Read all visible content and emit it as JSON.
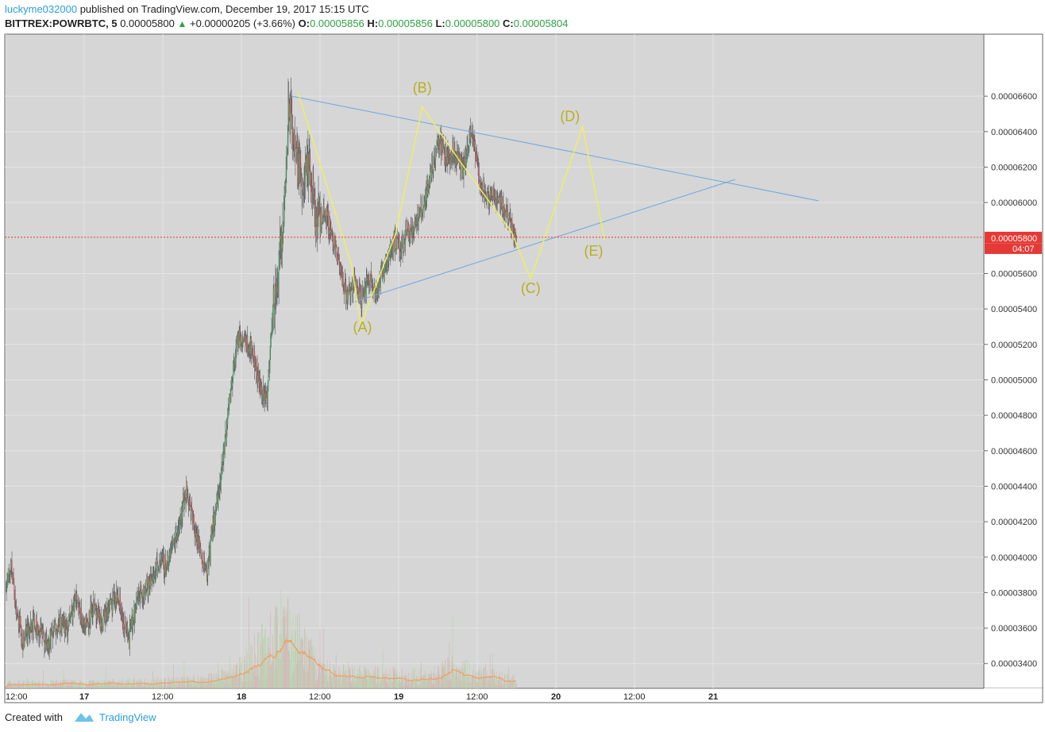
{
  "header": {
    "author": "luckyme032000",
    "published_text": "published on TradingView.com, December 19, 2017 15:15 UTC",
    "symbol": "BITTREX:POWRBTC, 5",
    "last": "0.00005800",
    "change_arrow": "▲",
    "change": "+0.00000205 (+3.66%)",
    "o_label": "O:",
    "o_value": "0.00005856",
    "h_label": "H:",
    "h_value": "0.00005856",
    "l_label": "L:",
    "l_value": "0.00005800",
    "c_label": "C:",
    "c_value": "0.00005804"
  },
  "footer": {
    "created_with": "Created with",
    "brand": "TradingView",
    "logo_icon": "tradingview-logo-icon"
  },
  "colors": {
    "up": "#3cb371",
    "down": "#e0525d",
    "volume": "#a8c8a0",
    "vol_ma": "#f0a060",
    "trendline": "#6aa8e0",
    "wave": "#f2f05a",
    "wave_label": "#b8b020",
    "price_line": "#e53935",
    "grid": "#e4e4e4",
    "bg": "#d6d6d6"
  },
  "chart_data": {
    "type": "candlestick",
    "ylim": [
      3.26e-05,
      6.95e-05
    ],
    "yticks": [
      "0.00006600",
      "0.00006400",
      "0.00006200",
      "0.00006000",
      "0.00005600",
      "0.00005400",
      "0.00005200",
      "0.00005000",
      "0.00004800",
      "0.00004600",
      "0.00004400",
      "0.00004200",
      "0.00004000",
      "0.00003800",
      "0.00003600",
      "0.00003400"
    ],
    "xticks": [
      "12:00",
      "17",
      "12:00",
      "18",
      "12:00",
      "19",
      "12:00",
      "20",
      "12:00",
      "21"
    ],
    "last_price_label": "0.00005804",
    "countdown_label": "04:07",
    "bid_label": "0.00005800",
    "price_path": [
      {
        "t": 0,
        "p": 3.82e-05
      },
      {
        "t": 0.03,
        "p": 3.98e-05
      },
      {
        "t": 0.07,
        "p": 3.68e-05
      },
      {
        "t": 0.11,
        "p": 3.52e-05
      },
      {
        "t": 0.16,
        "p": 3.64e-05
      },
      {
        "t": 0.22,
        "p": 3.58e-05
      },
      {
        "t": 0.27,
        "p": 3.5e-05
      },
      {
        "t": 0.33,
        "p": 3.64e-05
      },
      {
        "t": 0.39,
        "p": 3.6e-05
      },
      {
        "t": 0.45,
        "p": 3.78e-05
      },
      {
        "t": 0.5,
        "p": 3.6e-05
      },
      {
        "t": 0.55,
        "p": 3.72e-05
      },
      {
        "t": 0.6,
        "p": 3.62e-05
      },
      {
        "t": 0.66,
        "p": 3.72e-05
      },
      {
        "t": 0.71,
        "p": 3.78e-05
      },
      {
        "t": 0.75,
        "p": 3.62e-05
      },
      {
        "t": 0.78,
        "p": 3.54e-05
      },
      {
        "t": 0.85,
        "p": 3.8e-05
      },
      {
        "t": 0.92,
        "p": 3.85e-05
      },
      {
        "t": 0.97,
        "p": 3.98e-05
      },
      {
        "t": 1.02,
        "p": 3.95e-05
      },
      {
        "t": 1.09,
        "p": 4.15e-05
      },
      {
        "t": 1.15,
        "p": 4.38e-05
      },
      {
        "t": 1.19,
        "p": 4.2e-05
      },
      {
        "t": 1.24,
        "p": 4.02e-05
      },
      {
        "t": 1.28,
        "p": 3.92e-05
      },
      {
        "t": 1.32,
        "p": 4.2e-05
      },
      {
        "t": 1.37,
        "p": 4.45e-05
      },
      {
        "t": 1.41,
        "p": 4.8e-05
      },
      {
        "t": 1.47,
        "p": 5.22e-05
      },
      {
        "t": 1.52,
        "p": 5.25e-05
      },
      {
        "t": 1.57,
        "p": 5.15e-05
      },
      {
        "t": 1.62,
        "p": 4.95e-05
      },
      {
        "t": 1.66,
        "p": 4.9e-05
      },
      {
        "t": 1.7,
        "p": 5.4e-05
      },
      {
        "t": 1.76,
        "p": 5.8e-05
      },
      {
        "t": 1.8,
        "p": 6.55e-05
      },
      {
        "t": 1.84,
        "p": 6.3e-05
      },
      {
        "t": 1.88,
        "p": 6.12e-05
      },
      {
        "t": 1.93,
        "p": 6.18e-05
      },
      {
        "t": 1.97,
        "p": 5.9e-05
      },
      {
        "t": 2.03,
        "p": 5.95e-05
      },
      {
        "t": 2.08,
        "p": 5.8e-05
      },
      {
        "t": 2.13,
        "p": 5.6e-05
      },
      {
        "t": 2.17,
        "p": 5.48e-05
      },
      {
        "t": 2.22,
        "p": 5.56e-05
      },
      {
        "t": 2.26,
        "p": 5.45e-05
      },
      {
        "t": 2.31,
        "p": 5.58e-05
      },
      {
        "t": 2.36,
        "p": 5.5e-05
      },
      {
        "t": 2.41,
        "p": 5.65e-05
      },
      {
        "t": 2.47,
        "p": 5.78e-05
      },
      {
        "t": 2.51,
        "p": 5.72e-05
      },
      {
        "t": 2.55,
        "p": 5.85e-05
      },
      {
        "t": 2.6,
        "p": 5.86e-05
      },
      {
        "t": 2.65,
        "p": 5.97e-05
      },
      {
        "t": 2.7,
        "p": 6.15e-05
      },
      {
        "t": 2.75,
        "p": 6.36e-05
      },
      {
        "t": 2.8,
        "p": 6.25e-05
      },
      {
        "t": 2.85,
        "p": 6.28e-05
      },
      {
        "t": 2.91,
        "p": 6.18e-05
      },
      {
        "t": 2.96,
        "p": 6.4e-05
      },
      {
        "t": 3.01,
        "p": 6.15e-05
      },
      {
        "t": 3.06,
        "p": 6e-05
      },
      {
        "t": 3.11,
        "p": 6.05e-05
      },
      {
        "t": 3.16,
        "p": 5.98e-05
      },
      {
        "t": 3.22,
        "p": 5.88e-05
      },
      {
        "t": 3.25,
        "p": 5.8e-05
      }
    ],
    "volume_profile": [
      {
        "t": 0,
        "v": 0.05
      },
      {
        "t": 0.8,
        "v": 0.06
      },
      {
        "t": 1.2,
        "v": 0.08
      },
      {
        "t": 1.45,
        "v": 0.14
      },
      {
        "t": 1.6,
        "v": 0.35
      },
      {
        "t": 1.75,
        "v": 0.6
      },
      {
        "t": 1.85,
        "v": 0.5
      },
      {
        "t": 2.0,
        "v": 0.18
      },
      {
        "t": 2.3,
        "v": 0.14
      },
      {
        "t": 2.7,
        "v": 0.12
      },
      {
        "t": 2.85,
        "v": 0.22
      },
      {
        "t": 3.1,
        "v": 0.12
      },
      {
        "t": 3.25,
        "v": 0.08
      }
    ],
    "trendlines": [
      {
        "name": "upper",
        "from": {
          "t": 1.82,
          "p": 6.6e-05
        },
        "to": {
          "t": 5.17,
          "p": 6.01e-05
        }
      },
      {
        "name": "lower",
        "from": {
          "t": 2.22,
          "p": 5.44e-05
        },
        "to": {
          "t": 4.64,
          "p": 6.13e-05
        }
      }
    ],
    "wave_path": [
      {
        "t": 1.86,
        "p": 6.62e-05
      },
      {
        "t": 2.2,
        "p": 5.65e-05
      },
      {
        "t": 2.26,
        "p": 5.31e-05
      },
      {
        "t": 2.48,
        "p": 5.82e-05
      },
      {
        "t": 2.65,
        "p": 6.54e-05
      },
      {
        "t": 2.9,
        "p": 6.22e-05
      },
      {
        "t": 3.22,
        "p": 5.83e-05
      },
      {
        "t": 3.34,
        "p": 5.57e-05
      },
      {
        "t": 3.67,
        "p": 6.43e-05
      },
      {
        "t": 3.81,
        "p": 5.79e-05
      }
    ],
    "wave_labels": [
      {
        "text": "(A)",
        "t": 2.27,
        "p": 5.27e-05
      },
      {
        "text": "(B)",
        "t": 2.65,
        "p": 6.62e-05
      },
      {
        "text": "(C)",
        "t": 3.34,
        "p": 5.49e-05
      },
      {
        "text": "(D)",
        "t": 3.59,
        "p": 6.46e-05
      },
      {
        "text": "(E)",
        "t": 3.74,
        "p": 5.7e-05
      }
    ]
  }
}
